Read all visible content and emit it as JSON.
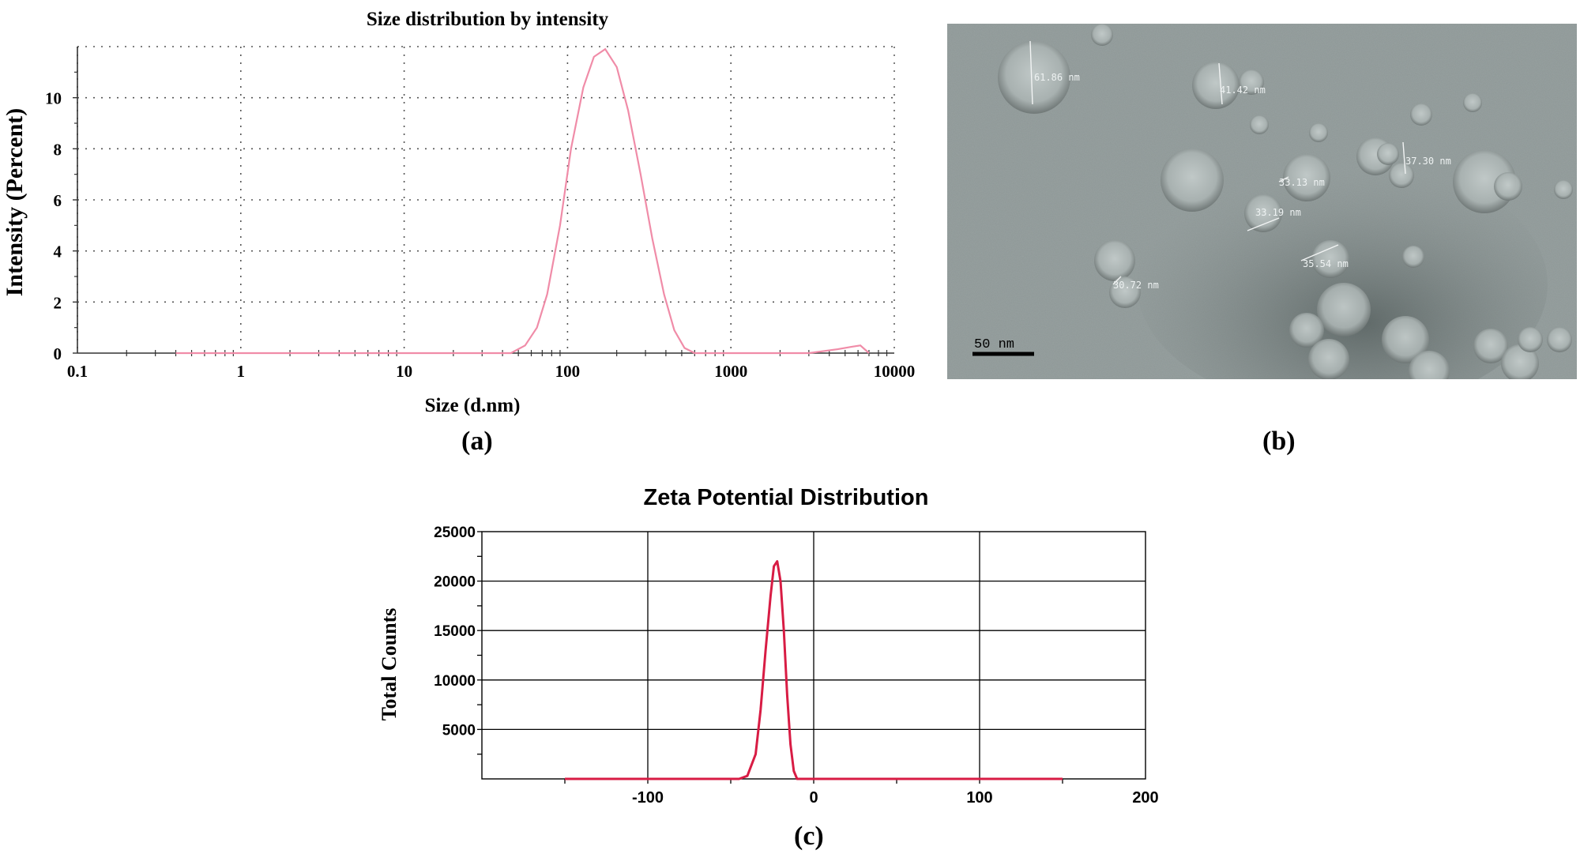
{
  "panels": {
    "a": {
      "label": "(a)"
    },
    "b": {
      "label": "(b)"
    },
    "c": {
      "label": "(c)"
    }
  },
  "chart_data": [
    {
      "id": "a",
      "type": "line",
      "title": "Size distribution by intensity",
      "xlabel": "Size (d.nm)",
      "ylabel": "Intensity (Percent)",
      "x_scale": "log",
      "xlim": [
        0.1,
        10000
      ],
      "ylim": [
        0,
        12
      ],
      "xticks": [
        "0.1",
        "1",
        "10",
        "100",
        "1000",
        "10000"
      ],
      "yticks": [
        "0",
        "2",
        "4",
        "6",
        "8",
        "10"
      ],
      "grid": "dotted",
      "color": "#f08ca8",
      "series": [
        {
          "x": [
            0.4,
            1,
            10,
            30,
            45,
            55,
            65,
            75,
            90,
            105,
            125,
            145,
            170,
            200,
            235,
            280,
            330,
            390,
            450,
            520,
            600,
            700,
            1000,
            3000,
            4500,
            5500,
            6200,
            7000
          ],
          "values": [
            0,
            0,
            0,
            0,
            0,
            0.3,
            1.0,
            2.3,
            5.0,
            8.0,
            10.4,
            11.6,
            11.9,
            11.2,
            9.5,
            7.0,
            4.5,
            2.3,
            0.9,
            0.2,
            0,
            0,
            0,
            0,
            0.15,
            0.25,
            0.3,
            0
          ]
        }
      ]
    },
    {
      "id": "c",
      "type": "line",
      "title": "Zeta Potential Distribution",
      "xlabel": "",
      "ylabel": "Total Counts",
      "xlim": [
        -200,
        200
      ],
      "ylim": [
        0,
        25000
      ],
      "xticks": [
        "-100",
        "0",
        "100",
        "200"
      ],
      "yticks": [
        "5000",
        "10000",
        "15000",
        "20000",
        "25000"
      ],
      "grid": "solid",
      "color": "#d81c44",
      "series": [
        {
          "x": [
            -150,
            -45,
            -40,
            -35,
            -32,
            -29,
            -26,
            -24,
            -22,
            -20,
            -18,
            -16,
            -14,
            -12,
            -10,
            -5,
            0,
            150
          ],
          "values": [
            0,
            0,
            300,
            2500,
            7000,
            13000,
            18500,
            21500,
            22000,
            20000,
            15000,
            8500,
            3500,
            800,
            0,
            0,
            0,
            0
          ]
        }
      ]
    }
  ],
  "tem_image": {
    "scale_bar": "50 nm",
    "particle_labels": [
      "61.86 nm",
      "41.42 nm",
      "37.30 nm",
      "33.13 nm",
      "33.19 nm",
      "35.54 nm",
      "30.72 nm"
    ]
  }
}
